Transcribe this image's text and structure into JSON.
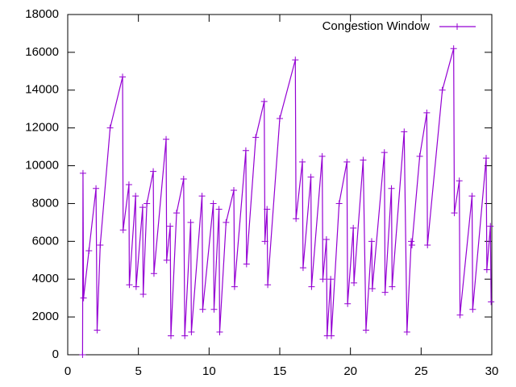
{
  "chart_data": {
    "type": "line",
    "x": [
      1.05,
      1.08,
      1.12,
      1.5,
      2.0,
      2.08,
      2.3,
      3.0,
      3.88,
      3.92,
      4.33,
      4.36,
      4.8,
      4.84,
      5.3,
      5.34,
      5.6,
      6.05,
      6.1,
      6.96,
      7.0,
      7.25,
      7.3,
      7.7,
      8.2,
      8.28,
      8.7,
      8.75,
      9.5,
      9.55,
      10.3,
      10.35,
      10.7,
      10.75,
      11.2,
      11.75,
      11.8,
      12.6,
      12.65,
      13.3,
      13.9,
      13.95,
      14.1,
      14.15,
      15.0,
      16.1,
      16.15,
      16.6,
      16.65,
      17.2,
      17.25,
      18.0,
      18.05,
      18.3,
      18.35,
      18.6,
      18.65,
      19.2,
      19.75,
      19.8,
      20.2,
      20.25,
      20.9,
      21.1,
      21.5,
      21.55,
      22.4,
      22.45,
      22.9,
      22.95,
      23.8,
      24.0,
      24.3,
      24.35,
      24.9,
      25.4,
      25.45,
      26.5,
      27.3,
      27.35,
      27.7,
      27.75,
      28.6,
      28.65,
      29.6,
      29.65,
      29.9,
      29.95
    ],
    "series": [
      {
        "name": "Congestion Window",
        "color": "#9400d3",
        "values": [
          0,
          9600,
          3000,
          5500,
          8800,
          1300,
          5800,
          12000,
          14700,
          6600,
          9000,
          3700,
          8400,
          3600,
          7800,
          3200,
          8000,
          9700,
          4300,
          11400,
          5000,
          6800,
          1000,
          7500,
          9300,
          1000,
          7000,
          1200,
          8400,
          2400,
          8000,
          2400,
          7700,
          1200,
          7000,
          8700,
          3600,
          10800,
          4800,
          11500,
          13400,
          6000,
          7700,
          3700,
          12500,
          15600,
          7200,
          10200,
          4600,
          9400,
          3600,
          10500,
          4000,
          6100,
          1000,
          4000,
          1000,
          8000,
          10200,
          2700,
          6700,
          3800,
          10300,
          1300,
          6000,
          3500,
          10700,
          3300,
          8800,
          3600,
          11800,
          1200,
          6000,
          5800,
          10500,
          12800,
          5800,
          14000,
          16200,
          7500,
          9200,
          2100,
          8400,
          2400,
          10400,
          4500,
          6800,
          2800
        ]
      }
    ],
    "xlim": [
      0,
      30
    ],
    "xticks": [
      0,
      5,
      10,
      15,
      20,
      25,
      30
    ],
    "ylim": [
      0,
      18000
    ],
    "yticks": [
      0,
      2000,
      4000,
      6000,
      8000,
      10000,
      12000,
      14000,
      16000,
      18000
    ],
    "grid": false,
    "legend": "top-right"
  }
}
